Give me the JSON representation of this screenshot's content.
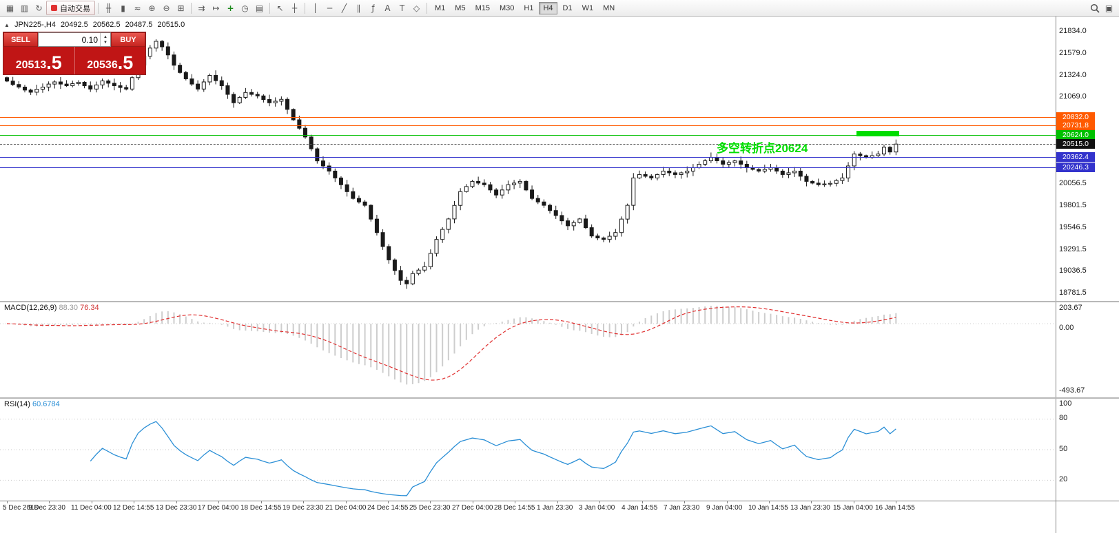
{
  "toolbar": {
    "autotrading_label": "自动交易",
    "active_timeframe": "H4",
    "timeframes": [
      "M1",
      "M5",
      "M15",
      "M30",
      "H1",
      "H4",
      "D1",
      "W1",
      "MN"
    ],
    "groups": [
      {
        "name": "file",
        "icons": [
          {
            "name": "terminal-icon",
            "glyph": "▦"
          },
          {
            "name": "accounts-icon",
            "glyph": "▥"
          },
          {
            "name": "refresh-icon",
            "glyph": "↻"
          }
        ]
      },
      {
        "name": "chart-type",
        "icons": [
          {
            "name": "ohlc-bars-icon",
            "glyph": "╫"
          },
          {
            "name": "candlestick-icon",
            "glyph": "▮"
          },
          {
            "name": "line-chart-icon",
            "glyph": "≈"
          },
          {
            "name": "zoom-in-icon",
            "glyph": "⊕"
          },
          {
            "name": "zoom-out-icon",
            "glyph": "⊖"
          },
          {
            "name": "tile-windows-icon",
            "glyph": "⊞"
          }
        ]
      },
      {
        "name": "chart-tools",
        "icons": [
          {
            "name": "auto-scroll-icon",
            "glyph": "⇉"
          },
          {
            "name": "chart-shift-icon",
            "glyph": "↦"
          },
          {
            "name": "indicators-icon",
            "glyph": "+"
          },
          {
            "name": "periods-icon",
            "glyph": "◷"
          },
          {
            "name": "templates-icon",
            "glyph": "▤"
          }
        ]
      },
      {
        "name": "cursor",
        "icons": [
          {
            "name": "cursor-icon",
            "glyph": "↖"
          },
          {
            "name": "crosshair-icon",
            "glyph": "┼"
          }
        ]
      },
      {
        "name": "drawing",
        "icons": [
          {
            "name": "vertical-line-icon",
            "glyph": "│"
          },
          {
            "name": "horizontal-line-icon",
            "glyph": "─"
          },
          {
            "name": "trendline-icon",
            "glyph": "╱"
          },
          {
            "name": "equidistant-channel-icon",
            "glyph": "∥"
          },
          {
            "name": "fibonacci-icon",
            "glyph": "ƒ"
          },
          {
            "name": "text-icon",
            "glyph": "A"
          },
          {
            "name": "text-label-icon",
            "glyph": "T"
          },
          {
            "name": "shapes-icon",
            "glyph": "◇"
          }
        ]
      }
    ],
    "right_icons": [
      {
        "name": "search-icon",
        "glyph": ""
      },
      {
        "name": "layout-icon",
        "glyph": "▣"
      }
    ]
  },
  "chart": {
    "header": {
      "marker": "▲",
      "symbol_period": "JPN225-,H4",
      "open": "20492.5",
      "high": "20562.5",
      "low": "20487.5",
      "close": "20515.0"
    },
    "trade_panel": {
      "sell_label": "SELL",
      "buy_label": "BUY",
      "lot_size": "0.10",
      "sell_price_main": "20513",
      "sell_price_frac": ".5",
      "buy_price_main": "20536",
      "buy_price_frac": ".5"
    },
    "annotation": {
      "text": "多空转折点20624",
      "color": "#00dd00"
    },
    "macd": {
      "title": "MACD(12,26,9)",
      "main_value": "88.30",
      "signal_value": "76.34",
      "axis_max": "203.67",
      "axis_zero": "0.00",
      "axis_min": "-493.67"
    },
    "rsi": {
      "title": "RSI(14)",
      "value": "60.6784",
      "level_labels": [
        "100",
        "80",
        "50",
        "20"
      ]
    }
  },
  "chart_data": {
    "type": "candlestick",
    "symbol": "JPN225-",
    "timeframe": "H4",
    "ohlc_current": {
      "open": 20492.5,
      "high": 20562.5,
      "low": 20487.5,
      "close": 20515.0
    },
    "y_axis_ticks": [
      "21834.0",
      "21579.0",
      "21324.0",
      "21069.0",
      "20056.5",
      "19801.5",
      "19546.5",
      "19291.5",
      "19036.5",
      "18781.5"
    ],
    "y_axis_range": [
      18781.5,
      21834.0
    ],
    "price_levels": [
      {
        "label": "20832.0",
        "value": 20832.0,
        "color": "#ff5a00",
        "style": "solid"
      },
      {
        "label": "20731.8",
        "value": 20731.8,
        "color": "#ff5a00",
        "style": "solid"
      },
      {
        "label": "20624.0",
        "value": 20624.0,
        "color": "#00c000",
        "style": "solid"
      },
      {
        "label": "20362.4",
        "value": 20362.4,
        "color": "#3333cc",
        "style": "solid"
      },
      {
        "label": "20246.3",
        "value": 20246.3,
        "color": "#3333cc",
        "style": "solid"
      }
    ],
    "bid_price": {
      "label": "20515.0",
      "value": 20515.0
    },
    "highlight_zone": {
      "price_top": 20668,
      "price_bottom": 20600,
      "start_index": 143,
      "end_index": 149,
      "color": "#00dd00"
    },
    "closes": [
      21250,
      21210,
      21180,
      21145,
      21120,
      21155,
      21180,
      21215,
      21240,
      21215,
      21196,
      21220,
      21236,
      21195,
      21157,
      21205,
      21252,
      21225,
      21196,
      21175,
      21157,
      21290,
      21435,
      21540,
      21635,
      21714,
      21650,
      21555,
      21435,
      21350,
      21276,
      21215,
      21157,
      21240,
      21316,
      21255,
      21196,
      21095,
      20997,
      21060,
      21117,
      21095,
      21077,
      21035,
      20997,
      21015,
      21037,
      20920,
      20798,
      20700,
      20598,
      20460,
      20319,
      20260,
      20200,
      20120,
      20041,
      19960,
      19881,
      19840,
      19801,
      19640,
      19483,
      19320,
      19164,
      19040,
      18925,
      18885,
      19005,
      19045,
      19084,
      19240,
      19403,
      19520,
      19642,
      19800,
      19961,
      20020,
      20080,
      20060,
      20041,
      19980,
      19921,
      19980,
      20041,
      20060,
      20080,
      19980,
      19881,
      19840,
      19801,
      19740,
      19682,
      19620,
      19562,
      19600,
      19642,
      19540,
      19443,
      19420,
      19403,
      19440,
      19483,
      19640,
      19801,
      20120,
      20160,
      20140,
      20120,
      20160,
      20200,
      20180,
      20160,
      20180,
      20200,
      20240,
      20280,
      20320,
      20359,
      20320,
      20280,
      20300,
      20319,
      20280,
      20240,
      20220,
      20200,
      20220,
      20240,
      20200,
      20160,
      20180,
      20200,
      20140,
      20080,
      20060,
      20041,
      20050,
      20057,
      20090,
      20120,
      20260,
      20399,
      20380,
      20359,
      20380,
      20399,
      20479,
      20423,
      20515
    ],
    "x_axis_labels": [
      "5 Dec 2018",
      "9 Dec 23:30",
      "11 Dec 04:00",
      "12 Dec 14:55",
      "13 Dec 23:30",
      "17 Dec 04:00",
      "18 Dec 14:55",
      "19 Dec 23:30",
      "21 Dec 04:00",
      "24 Dec 14:55",
      "25 Dec 23:30",
      "27 Dec 04:00",
      "28 Dec 14:55",
      "1 Jan 23:30",
      "3 Jan 04:00",
      "4 Jan 14:55",
      "7 Jan 23:30",
      "9 Jan 04:00",
      "10 Jan 14:55",
      "13 Jan 23:30",
      "15 Jan 04:00",
      "16 Jan 14:55"
    ],
    "indicators": [
      {
        "name": "MACD",
        "params": [
          12,
          26,
          9
        ],
        "values": [
          88.3,
          76.34
        ],
        "axis": [
          203.67,
          0.0,
          -493.67
        ]
      },
      {
        "name": "RSI",
        "params": [
          14
        ],
        "value": 60.6784,
        "levels": [
          80,
          50,
          20
        ]
      }
    ]
  }
}
